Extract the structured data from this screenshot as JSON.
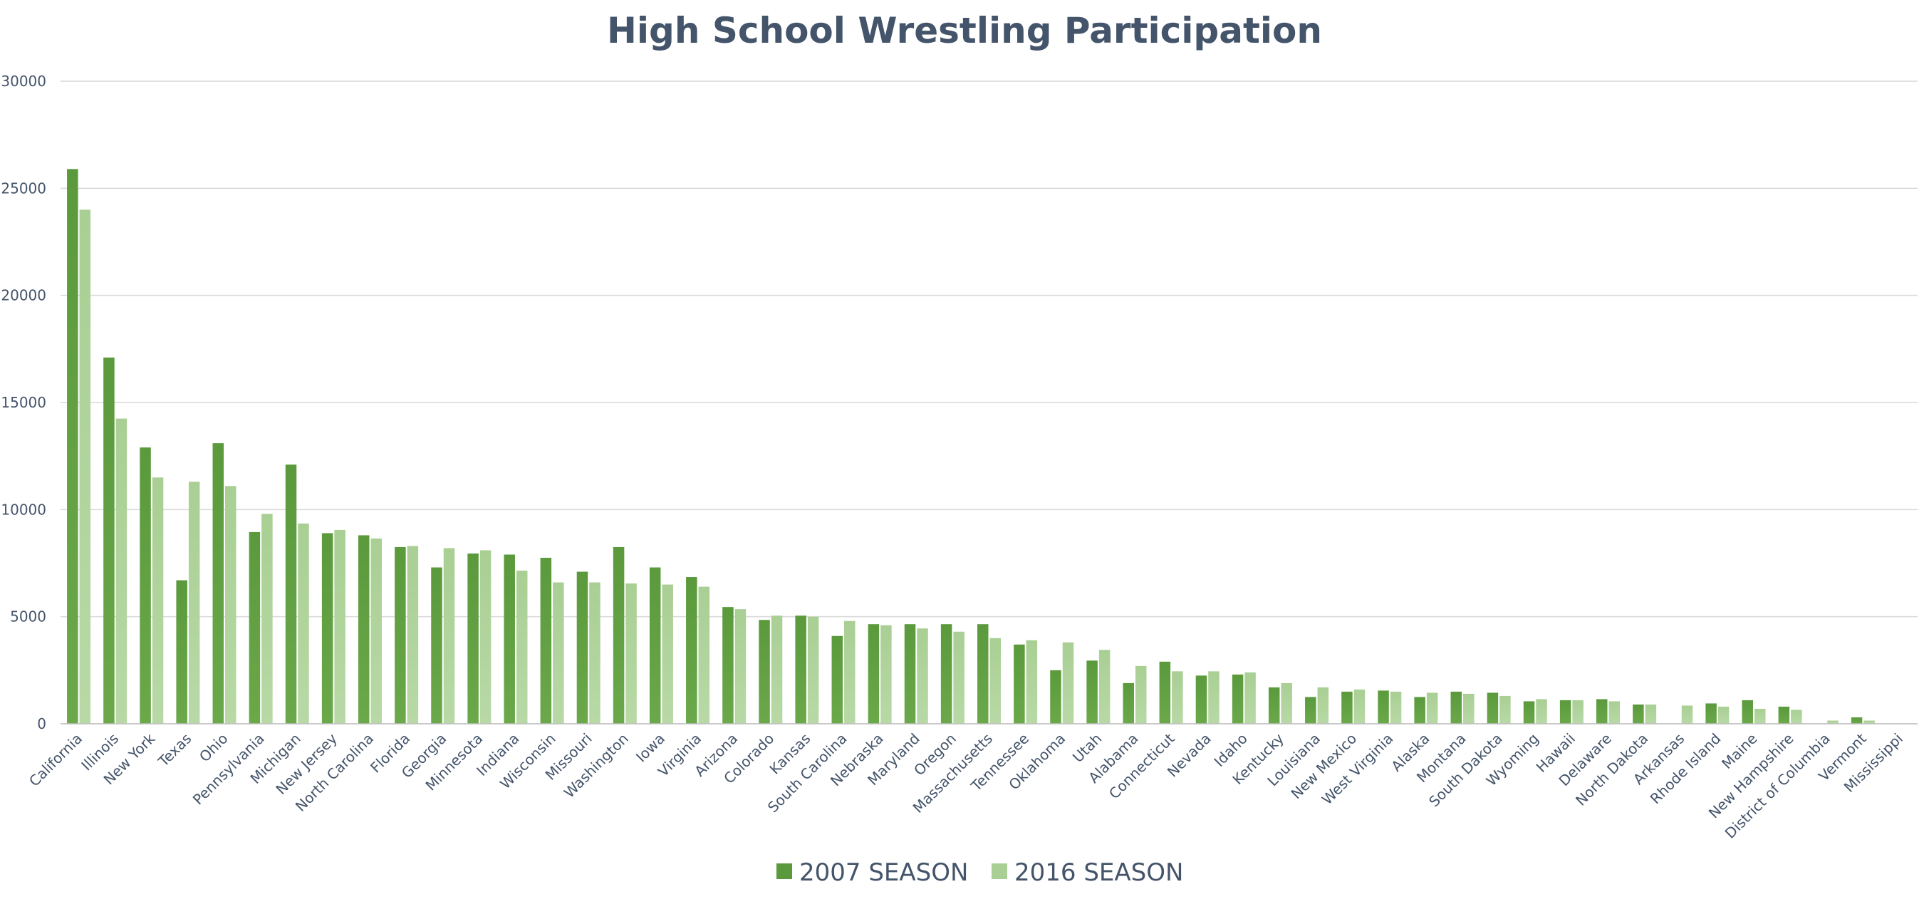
{
  "chart_data": {
    "type": "bar",
    "title": "High School Wrestling Participation",
    "xlabel": "",
    "ylabel": "",
    "ylim": [
      0,
      30000
    ],
    "yticks": [
      0,
      5000,
      10000,
      15000,
      20000,
      25000,
      30000
    ],
    "grid": true,
    "legend_position": "bottom",
    "categories": [
      "California",
      "Illinois",
      "New York",
      "Texas",
      "Ohio",
      "Pennsylvania",
      "Michigan",
      "New Jersey",
      "North Carolina",
      "Florida",
      "Georgia",
      "Minnesota",
      "Indiana",
      "Wisconsin",
      "Missouri",
      "Washington",
      "Iowa",
      "Virginia",
      "Arizona",
      "Colorado",
      "Kansas",
      "South Carolina",
      "Nebraska",
      "Maryland",
      "Oregon",
      "Massachusetts",
      "Tennessee",
      "Oklahoma",
      "Utah",
      "Alabama",
      "Connecticut",
      "Nevada",
      "Idaho",
      "Kentucky",
      "Louisiana",
      "New Mexico",
      "West Virginia",
      "Alaska",
      "Montana",
      "South Dakota",
      "Wyoming",
      "Hawaii",
      "Delaware",
      "North Dakota",
      "Arkansas",
      "Rhode Island",
      "Maine",
      "New Hampshire",
      "District of Columbia",
      "Vermont",
      "Mississippi"
    ],
    "series": [
      {
        "name": "2007 SEASON",
        "color": "#5b9a3c",
        "values": [
          25900,
          17100,
          12900,
          6700,
          13100,
          8950,
          12100,
          8900,
          8800,
          8250,
          7300,
          7950,
          7900,
          7750,
          7100,
          8250,
          7300,
          6850,
          5450,
          4850,
          5050,
          4100,
          4650,
          4650,
          4650,
          4650,
          3700,
          2500,
          2950,
          1900,
          2900,
          2250,
          2300,
          1700,
          1250,
          1500,
          1550,
          1250,
          1500,
          1450,
          1050,
          1100,
          1150,
          900,
          0,
          950,
          1100,
          800,
          0,
          300,
          0
        ]
      },
      {
        "name": "2016 SEASON",
        "color": "#a9cf94",
        "values": [
          24000,
          14250,
          11500,
          11300,
          11100,
          9800,
          9350,
          9050,
          8650,
          8300,
          8200,
          8100,
          7150,
          6600,
          6600,
          6550,
          6500,
          6400,
          5350,
          5050,
          5000,
          4800,
          4600,
          4450,
          4300,
          4000,
          3900,
          3800,
          3450,
          2700,
          2450,
          2450,
          2400,
          1900,
          1700,
          1600,
          1500,
          1450,
          1400,
          1300,
          1150,
          1100,
          1050,
          900,
          850,
          800,
          700,
          650,
          150,
          150,
          0
        ]
      }
    ]
  }
}
